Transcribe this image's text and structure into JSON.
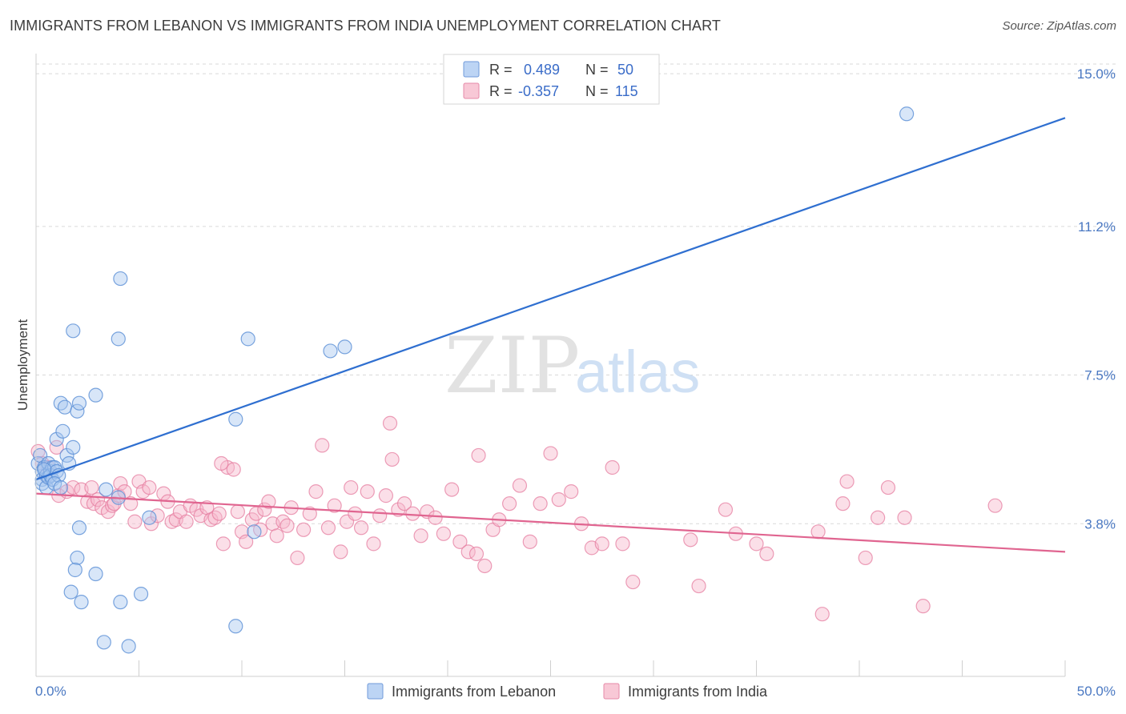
{
  "title": "IMMIGRANTS FROM LEBANON VS IMMIGRANTS FROM INDIA UNEMPLOYMENT CORRELATION CHART",
  "source": "Source: ZipAtlas.com",
  "watermark": {
    "zip": "ZIP",
    "atlas": "atlas"
  },
  "colors": {
    "lebanon_fill": "#a9c8f0",
    "lebanon_stroke": "#5a8fd6",
    "lebanon_line": "#2f6fd0",
    "india_fill": "#f6b9cb",
    "india_stroke": "#e67ea0",
    "india_line": "#e06590",
    "grid": "#d9d9d9",
    "tick_text": "#4a78c2"
  },
  "legend_box": {
    "rows": [
      {
        "r_label": "R =",
        "r_value": "0.489",
        "n_label": "N =",
        "n_value": "50"
      },
      {
        "r_label": "R =",
        "r_value": "-0.357",
        "n_label": "N =",
        "n_value": "115"
      }
    ]
  },
  "chart_data": {
    "type": "scatter",
    "title": "IMMIGRANTS FROM LEBANON VS IMMIGRANTS FROM INDIA UNEMPLOYMENT CORRELATION CHART",
    "xlabel": "",
    "ylabel": "Unemployment",
    "xlim": [
      0,
      50
    ],
    "ylim": [
      0,
      15.4
    ],
    "x_tick_labels": [
      "0.0%",
      "50.0%"
    ],
    "y_ticks": [
      3.8,
      7.5,
      11.2,
      15.0
    ],
    "y_tick_labels": [
      "3.8%",
      "7.5%",
      "11.2%",
      "15.0%"
    ],
    "grid": true,
    "legend_placement": "bottom-center",
    "series": [
      {
        "name": "Immigrants from Lebanon",
        "R": 0.489,
        "N": 50,
        "trend": {
          "x": [
            0,
            50
          ],
          "y": [
            4.9,
            13.9
          ]
        },
        "points": [
          [
            0.1,
            5.3
          ],
          [
            0.2,
            5.5
          ],
          [
            0.3,
            5.1
          ],
          [
            0.3,
            4.9
          ],
          [
            0.4,
            5.2
          ],
          [
            0.5,
            5.0
          ],
          [
            0.6,
            5.3
          ],
          [
            0.7,
            5.1
          ],
          [
            0.8,
            5.2
          ],
          [
            0.3,
            4.8
          ],
          [
            0.5,
            4.7
          ],
          [
            0.6,
            4.95
          ],
          [
            0.7,
            5.0
          ],
          [
            0.8,
            4.9
          ],
          [
            0.9,
            5.2
          ],
          [
            1.0,
            5.1
          ],
          [
            1.1,
            5.0
          ],
          [
            0.4,
            5.15
          ],
          [
            0.9,
            4.8
          ],
          [
            1.2,
            4.7
          ],
          [
            1.0,
            5.9
          ],
          [
            1.3,
            6.1
          ],
          [
            1.5,
            5.5
          ],
          [
            1.8,
            5.7
          ],
          [
            1.6,
            5.3
          ],
          [
            1.2,
            6.8
          ],
          [
            1.4,
            6.7
          ],
          [
            2.0,
            6.6
          ],
          [
            2.1,
            6.8
          ],
          [
            2.9,
            7.0
          ],
          [
            1.8,
            8.6
          ],
          [
            4.0,
            8.4
          ],
          [
            4.1,
            9.9
          ],
          [
            10.3,
            8.4
          ],
          [
            14.3,
            8.1
          ],
          [
            15.0,
            8.2
          ],
          [
            9.7,
            6.4
          ],
          [
            3.4,
            4.65
          ],
          [
            4.0,
            4.45
          ],
          [
            5.5,
            3.95
          ],
          [
            10.6,
            3.6
          ],
          [
            2.1,
            3.7
          ],
          [
            2.0,
            2.95
          ],
          [
            1.9,
            2.65
          ],
          [
            2.9,
            2.55
          ],
          [
            1.7,
            2.1
          ],
          [
            2.2,
            1.85
          ],
          [
            4.1,
            1.85
          ],
          [
            5.1,
            2.05
          ],
          [
            9.7,
            1.25
          ],
          [
            3.3,
            0.85
          ],
          [
            4.5,
            0.75
          ],
          [
            42.3,
            14.0
          ]
        ]
      },
      {
        "name": "Immigrants from India",
        "R": -0.357,
        "N": 115,
        "trend": {
          "x": [
            0,
            50
          ],
          "y": [
            4.55,
            3.1
          ]
        },
        "points": [
          [
            0.1,
            5.6
          ],
          [
            0.3,
            5.3
          ],
          [
            0.5,
            5.0
          ],
          [
            0.6,
            5.2
          ],
          [
            1.0,
            5.7
          ],
          [
            1.1,
            4.5
          ],
          [
            1.5,
            4.6
          ],
          [
            1.8,
            4.7
          ],
          [
            2.2,
            4.65
          ],
          [
            2.5,
            4.35
          ],
          [
            2.7,
            4.7
          ],
          [
            2.8,
            4.3
          ],
          [
            3.0,
            4.4
          ],
          [
            3.2,
            4.2
          ],
          [
            3.5,
            4.1
          ],
          [
            3.7,
            4.25
          ],
          [
            3.8,
            4.3
          ],
          [
            4.0,
            4.5
          ],
          [
            4.1,
            4.8
          ],
          [
            4.3,
            4.6
          ],
          [
            4.6,
            4.3
          ],
          [
            4.8,
            3.85
          ],
          [
            5.0,
            4.85
          ],
          [
            5.2,
            4.6
          ],
          [
            5.5,
            4.7
          ],
          [
            5.6,
            3.8
          ],
          [
            5.9,
            4.0
          ],
          [
            6.2,
            4.55
          ],
          [
            6.4,
            4.35
          ],
          [
            6.6,
            3.85
          ],
          [
            6.8,
            3.9
          ],
          [
            7.0,
            4.1
          ],
          [
            7.3,
            3.85
          ],
          [
            7.5,
            4.25
          ],
          [
            7.8,
            4.15
          ],
          [
            8.0,
            4.0
          ],
          [
            8.3,
            4.2
          ],
          [
            8.5,
            3.9
          ],
          [
            8.7,
            3.95
          ],
          [
            8.9,
            4.05
          ],
          [
            9.1,
            3.3
          ],
          [
            9.3,
            5.2
          ],
          [
            9.6,
            5.15
          ],
          [
            9.8,
            4.1
          ],
          [
            10.0,
            3.6
          ],
          [
            10.2,
            3.35
          ],
          [
            10.5,
            3.9
          ],
          [
            10.7,
            4.05
          ],
          [
            10.9,
            3.65
          ],
          [
            11.1,
            4.15
          ],
          [
            11.3,
            4.35
          ],
          [
            11.5,
            3.8
          ],
          [
            11.7,
            3.5
          ],
          [
            12.0,
            3.85
          ],
          [
            12.2,
            3.75
          ],
          [
            12.4,
            4.2
          ],
          [
            12.7,
            2.95
          ],
          [
            13.0,
            3.65
          ],
          [
            13.3,
            4.05
          ],
          [
            13.6,
            4.6
          ],
          [
            13.9,
            5.75
          ],
          [
            14.2,
            3.7
          ],
          [
            14.5,
            4.25
          ],
          [
            14.8,
            3.1
          ],
          [
            15.1,
            3.85
          ],
          [
            15.3,
            4.7
          ],
          [
            15.5,
            4.05
          ],
          [
            15.8,
            3.7
          ],
          [
            16.1,
            4.6
          ],
          [
            16.4,
            3.3
          ],
          [
            16.7,
            4.0
          ],
          [
            17.0,
            4.5
          ],
          [
            17.3,
            5.4
          ],
          [
            17.6,
            4.15
          ],
          [
            17.9,
            4.3
          ],
          [
            18.3,
            4.05
          ],
          [
            18.7,
            3.5
          ],
          [
            19.0,
            4.1
          ],
          [
            19.4,
            3.95
          ],
          [
            19.8,
            3.55
          ],
          [
            20.2,
            4.65
          ],
          [
            20.6,
            3.35
          ],
          [
            21.0,
            3.1
          ],
          [
            21.4,
            3.05
          ],
          [
            21.8,
            2.75
          ],
          [
            22.2,
            3.65
          ],
          [
            22.5,
            3.9
          ],
          [
            23.0,
            4.3
          ],
          [
            23.5,
            4.75
          ],
          [
            24.0,
            3.35
          ],
          [
            24.5,
            4.3
          ],
          [
            25.0,
            5.55
          ],
          [
            25.4,
            4.4
          ],
          [
            26.0,
            4.6
          ],
          [
            26.5,
            3.8
          ],
          [
            27.0,
            3.2
          ],
          [
            27.5,
            3.3
          ],
          [
            28.0,
            5.2
          ],
          [
            28.5,
            3.3
          ],
          [
            29.0,
            2.35
          ],
          [
            32.2,
            2.25
          ],
          [
            33.5,
            4.15
          ],
          [
            35.0,
            3.3
          ],
          [
            35.5,
            3.05
          ],
          [
            38.0,
            3.6
          ],
          [
            39.2,
            4.3
          ],
          [
            39.4,
            4.85
          ],
          [
            40.3,
            2.95
          ],
          [
            40.9,
            3.95
          ],
          [
            41.4,
            4.7
          ],
          [
            42.2,
            3.95
          ],
          [
            43.1,
            1.75
          ],
          [
            46.6,
            4.25
          ],
          [
            31.8,
            3.4
          ],
          [
            34.0,
            3.55
          ],
          [
            17.2,
            6.3
          ],
          [
            9.0,
            5.3
          ],
          [
            21.5,
            5.5
          ],
          [
            38.2,
            1.55
          ]
        ]
      }
    ]
  },
  "legend": {
    "items": [
      {
        "label": "Immigrants from Lebanon"
      },
      {
        "label": "Immigrants from India"
      }
    ]
  }
}
